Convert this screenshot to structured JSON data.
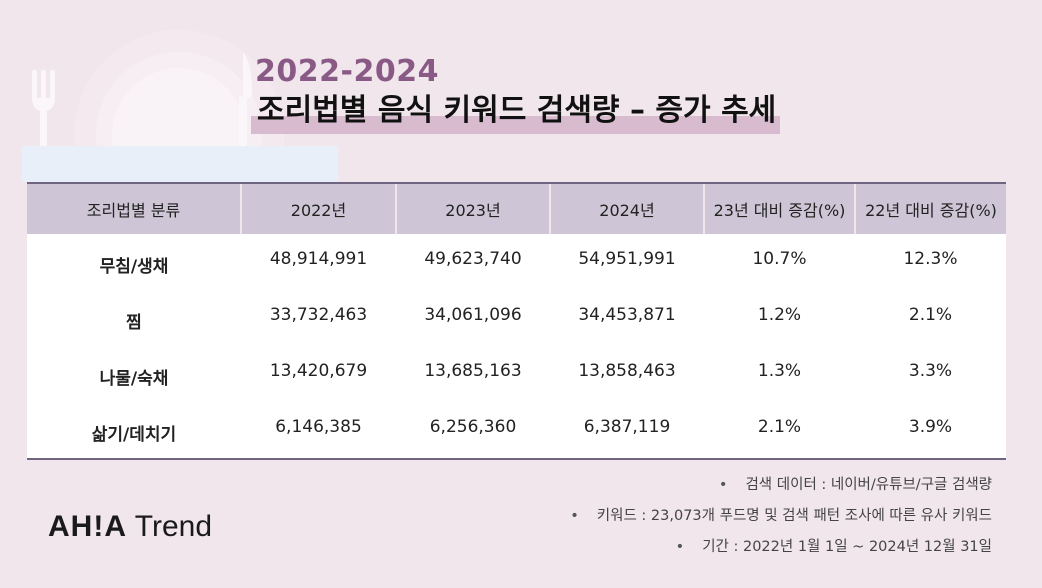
{
  "header": {
    "year_range": "2022-2024",
    "title": "조리법별 음식 키워드 검색량 – 증가 추세"
  },
  "table": {
    "columns": [
      "조리법별 분류",
      "2022년",
      "2023년",
      "2024년",
      "23년 대비 증감(%)",
      "22년 대비 증감(%)"
    ],
    "rows": [
      {
        "category": "무침/생채",
        "y2022": "48,914,991",
        "y2023": "49,623,740",
        "y2024": "54,951,991",
        "vs23": "10.7%",
        "vs22": "12.3%"
      },
      {
        "category": "찜",
        "y2022": "33,732,463",
        "y2023": "34,061,096",
        "y2024": "34,453,871",
        "vs23": "1.2%",
        "vs22": "2.1%"
      },
      {
        "category": "나물/숙채",
        "y2022": "13,420,679",
        "y2023": "13,685,163",
        "y2024": "13,858,463",
        "vs23": "1.3%",
        "vs22": "3.3%"
      },
      {
        "category": "삶기/데치기",
        "y2022": "6,146,385",
        "y2023": "6,256,360",
        "y2024": "6,387,119",
        "vs23": "2.1%",
        "vs22": "3.9%"
      }
    ]
  },
  "notes": [
    {
      "bullet": "•",
      "text": "검색 데이터 : 네이버/유튜브/구글 검색량"
    },
    {
      "bullet": "•",
      "text": "키워드 :  23,073개 푸드명 및 검색 패턴 조사에 따른 유사 키워드"
    },
    {
      "bullet": "•",
      "text": "기간 : 2022년 1월 1일 ~ 2024년 12월 31일"
    }
  ],
  "logo": {
    "brand": "AH!A",
    "suffix": "Trend"
  },
  "icons": [
    "fork-icon",
    "plate-icon",
    "knife-icon"
  ],
  "colors": {
    "accent": "#8a5a86",
    "header_bg": "#cec6d6",
    "page_bg": "#f1e6ec"
  }
}
